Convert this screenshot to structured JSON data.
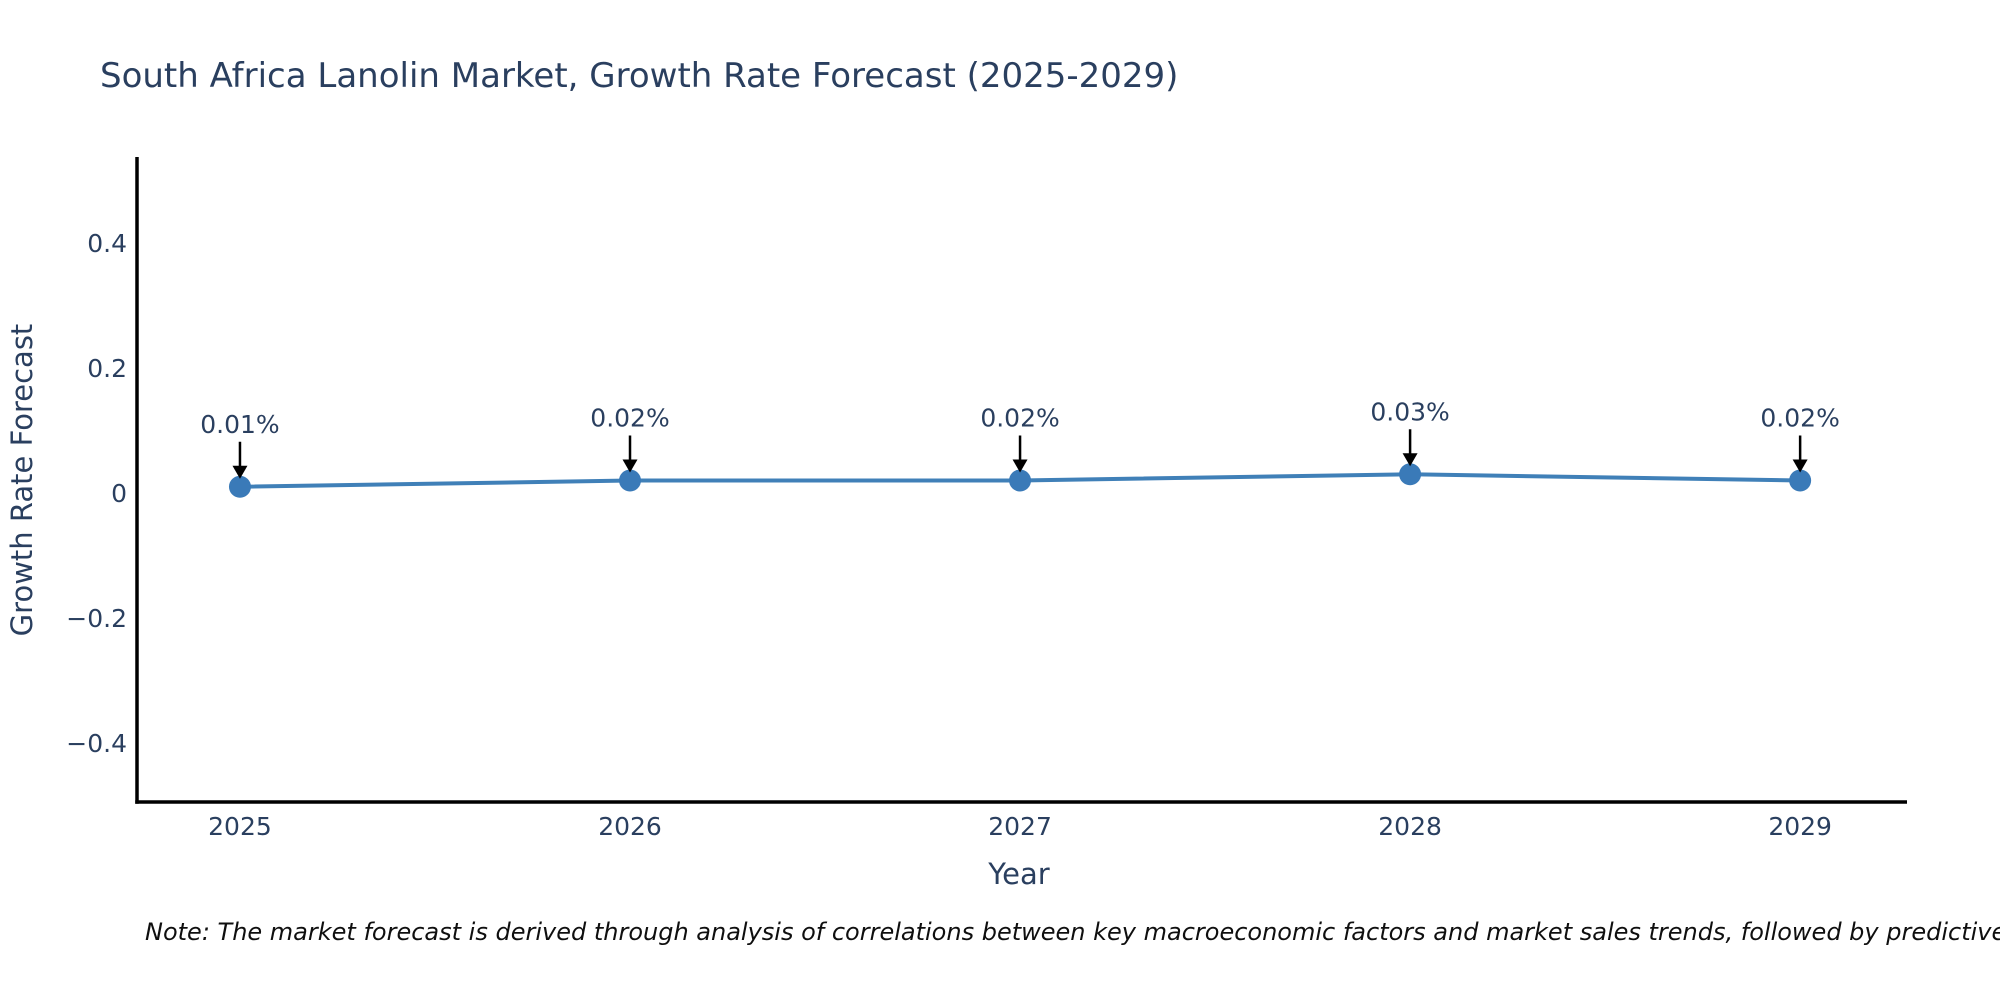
{
  "page": {
    "title": "South Africa Lanolin Market, Growth Rate Forecast (2025-2029)",
    "note": "Note: The market forecast is derived through analysis of correlations between key macroeconomic factors and market sales trends, followed by predictive modeling to project future sales"
  },
  "colors": {
    "background": "#ffffff",
    "title_text": "#2a3f5f",
    "tick_text": "#2a3f5f",
    "axis_line": "#000000",
    "series_line": "#4080b8",
    "marker_fill": "#3a7ab8",
    "annotation_text": "#2a3f5f",
    "annotation_arrow": "#000000",
    "note_text": "#0f0f0f"
  },
  "chart_data": {
    "type": "line",
    "title": "South Africa Lanolin Market, Growth Rate Forecast (2025-2029)",
    "xlabel": "Year",
    "ylabel": "Growth Rate Forecast",
    "x": [
      2025,
      2026,
      2027,
      2028,
      2029
    ],
    "series": [
      {
        "name": "Growth Rate Forecast",
        "values": [
          0.01,
          0.02,
          0.02,
          0.03,
          0.02
        ],
        "labels": [
          "0.01%",
          "0.02%",
          "0.02%",
          "0.03%",
          "0.02%"
        ]
      }
    ],
    "x_tick_labels": [
      "2025",
      "2026",
      "2027",
      "2028",
      "2029"
    ],
    "y_ticks": [
      0.4,
      0.2,
      0,
      -0.2,
      -0.4
    ],
    "y_tick_labels": [
      "0.4",
      "0.2",
      "0",
      "−0.2",
      "−0.4"
    ],
    "xlim": [
      2024.736,
      2029.274
    ],
    "ylim": [
      -0.4944,
      0.5376
    ],
    "grid": false,
    "legend": "none",
    "marker": "circle"
  }
}
